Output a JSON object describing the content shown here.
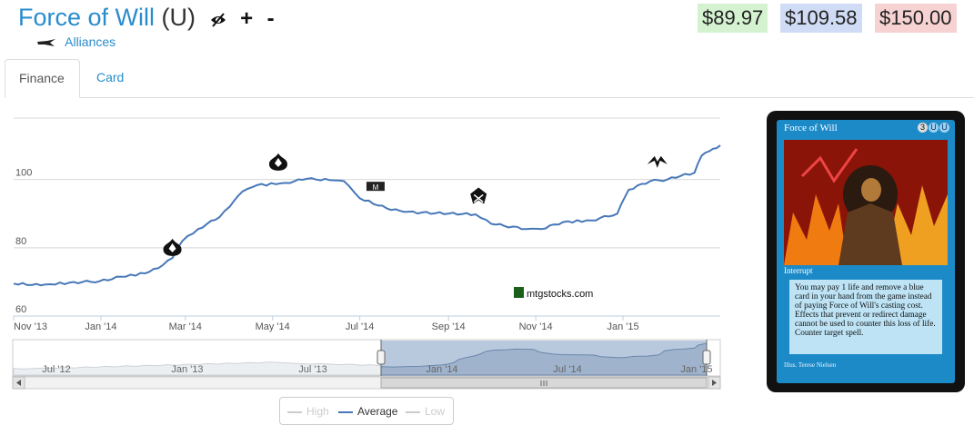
{
  "header": {
    "card_name": "Force of Will",
    "rarity": "(U)",
    "set_name": "Alliances",
    "icons": [
      "eye-slash-icon",
      "plus-icon",
      "minus-icon",
      "alliances-set-icon"
    ]
  },
  "prices": {
    "low": "$89.97",
    "average": "$109.58",
    "high": "$150.00"
  },
  "colors": {
    "link": "#2a8ccc",
    "series": "#4878b8",
    "low_bg": "#d5f2d0",
    "avg_bg": "#d0dcf5",
    "high_bg": "#f7d2d2"
  },
  "tabs": [
    {
      "label": "Finance",
      "active": true
    },
    {
      "label": "Card",
      "active": false
    }
  ],
  "watermark": "mtgstocks.com",
  "legend": [
    {
      "label": "High",
      "active": false
    },
    {
      "label": "Average",
      "active": true
    },
    {
      "label": "Low",
      "active": false
    }
  ],
  "card_image": {
    "name": "Force of Will",
    "mana_cost": [
      "3",
      "U",
      "U"
    ],
    "type": "Interrupt",
    "rules_text": "You may pay 1 life and remove a blue card in your hand from the game instead of paying Force of Will's casting cost. Effects that prevent or redirect damage cannot be used to counter this loss of life. Counter target spell.",
    "artist": "Illus. Terese Nielsen"
  },
  "chart_data": {
    "type": "line",
    "grid": true,
    "x_ticks": [
      "Nov '13",
      "Jan '14",
      "Mar '14",
      "May '14",
      "Jul '14",
      "Sep '14",
      "Nov '14",
      "Jan '15"
    ],
    "y_ticks": [
      60,
      80,
      100
    ],
    "ylim": [
      60,
      118
    ],
    "xlim": [
      "2013-11-01",
      "2015-03-10"
    ],
    "series": [
      {
        "label": "Average",
        "points": [
          [
            "2013-11-01",
            69.5
          ],
          [
            "2013-11-20",
            69.0
          ],
          [
            "2013-12-10",
            69.8
          ],
          [
            "2013-12-31",
            70.2
          ],
          [
            "2014-01-15",
            71.5
          ],
          [
            "2014-02-01",
            72.5
          ],
          [
            "2014-02-10",
            74.0
          ],
          [
            "2014-02-20",
            77.0
          ],
          [
            "2014-02-27",
            82.0
          ],
          [
            "2014-03-10",
            85.5
          ],
          [
            "2014-03-25",
            89.0
          ],
          [
            "2014-04-01",
            92.0
          ],
          [
            "2014-04-10",
            96.5
          ],
          [
            "2014-04-20",
            98.3
          ],
          [
            "2014-05-10",
            99.0
          ],
          [
            "2014-05-25",
            100.2
          ],
          [
            "2014-06-10",
            99.8
          ],
          [
            "2014-06-20",
            99.5
          ],
          [
            "2014-07-01",
            94.5
          ],
          [
            "2014-07-20",
            91.5
          ],
          [
            "2014-08-01",
            90.5
          ],
          [
            "2014-09-01",
            90.0
          ],
          [
            "2014-09-20",
            89.8
          ],
          [
            "2014-10-01",
            87.0
          ],
          [
            "2014-10-25",
            85.5
          ],
          [
            "2014-11-05",
            85.5
          ],
          [
            "2014-11-20",
            87.5
          ],
          [
            "2014-12-10",
            88.0
          ],
          [
            "2014-12-28",
            90.0
          ],
          [
            "2015-01-05",
            97.0
          ],
          [
            "2015-01-20",
            99.5
          ],
          [
            "2015-02-01",
            100.0
          ],
          [
            "2015-02-10",
            101.0
          ],
          [
            "2015-02-20",
            102.0
          ],
          [
            "2015-02-25",
            107.0
          ],
          [
            "2015-03-05",
            109.0
          ],
          [
            "2015-03-10",
            110.0
          ]
        ]
      }
    ],
    "set_release_markers": [
      {
        "date": "2014-02-20",
        "value": 80,
        "icon": "born-of-the-gods-set-icon"
      },
      {
        "date": "2014-05-05",
        "value": 105,
        "icon": "journey-into-nyx-set-icon"
      },
      {
        "date": "2014-07-12",
        "value": 98,
        "icon": "m15-set-icon"
      },
      {
        "date": "2014-09-22",
        "value": 95,
        "icon": "khans-of-tarkir-set-icon"
      },
      {
        "date": "2015-01-25",
        "value": 105,
        "icon": "fate-reforged-set-icon"
      }
    ],
    "navigator": {
      "x_ticks": [
        "Jul '12",
        "Jan '13",
        "Jul '13",
        "Jan '14",
        "Jul '14",
        "Jan '15"
      ],
      "selected_range": [
        "2013-11-01",
        "2015-03-10"
      ]
    }
  }
}
